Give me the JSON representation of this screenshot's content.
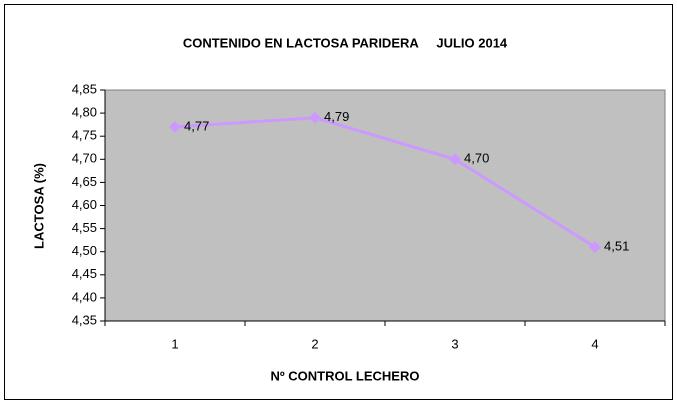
{
  "chart_data": {
    "type": "line",
    "title": "CONTENIDO EN LACTOSA PARIDERA     JULIO 2014",
    "x_label": "Nº CONTROL LECHERO",
    "y_label": "LACTOSA (%)",
    "categories": [
      "1",
      "2",
      "3",
      "4"
    ],
    "values": [
      4.77,
      4.79,
      4.7,
      4.51
    ],
    "value_labels": [
      "4,77",
      "4,79",
      "4,70",
      "4,51"
    ],
    "color": "#cc99ff",
    "plot_background": "#c0c0c0",
    "ylim": [
      4.35,
      4.85
    ],
    "yticks": [
      {
        "value": 4.35,
        "label": "4,35"
      },
      {
        "value": 4.4,
        "label": "4,40"
      },
      {
        "value": 4.45,
        "label": "4,45"
      },
      {
        "value": 4.5,
        "label": "4,50"
      },
      {
        "value": 4.55,
        "label": "4,55"
      },
      {
        "value": 4.6,
        "label": "4,60"
      },
      {
        "value": 4.65,
        "label": "4,65"
      },
      {
        "value": 4.7,
        "label": "4,70"
      },
      {
        "value": 4.75,
        "label": "4,75"
      },
      {
        "value": 4.8,
        "label": "4,80"
      },
      {
        "value": 4.85,
        "label": "4,85"
      }
    ],
    "grid": false
  }
}
